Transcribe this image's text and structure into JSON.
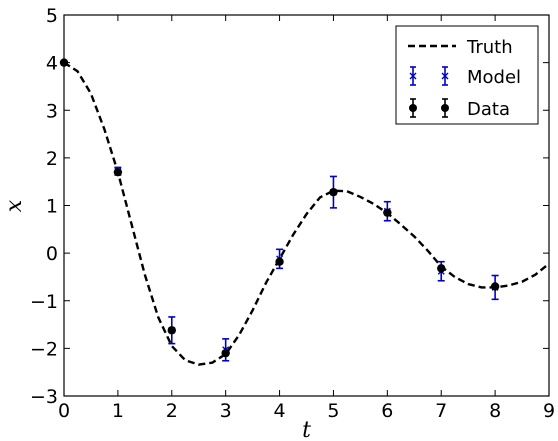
{
  "chart_data": {
    "type": "line",
    "title": "",
    "xlabel": "t",
    "ylabel": "x",
    "xlim": [
      0,
      9
    ],
    "ylim": [
      -3,
      5
    ],
    "xticks": [
      0,
      1,
      2,
      3,
      4,
      5,
      6,
      7,
      8,
      9
    ],
    "yticks": [
      -3,
      -2,
      -1,
      0,
      1,
      2,
      3,
      4,
      5
    ],
    "xtick_labels": [
      "0",
      "1",
      "2",
      "3",
      "4",
      "5",
      "6",
      "7",
      "8",
      "9"
    ],
    "ytick_labels": [
      "−3",
      "−2",
      "−1",
      "0",
      "1",
      "2",
      "3",
      "4",
      "5"
    ],
    "grid": false,
    "legend_position": "top-right",
    "series": [
      {
        "name": "Truth",
        "style": "dashed-line",
        "color": "#000000",
        "x": [
          0,
          0.25,
          0.5,
          0.75,
          1,
          1.25,
          1.5,
          1.75,
          2,
          2.25,
          2.5,
          2.75,
          3,
          3.25,
          3.5,
          3.75,
          4,
          4.25,
          4.5,
          4.75,
          5,
          5.25,
          5.5,
          5.75,
          6,
          6.25,
          6.5,
          6.75,
          7,
          7.25,
          7.5,
          7.75,
          8,
          8.25,
          8.5,
          8.75,
          9
        ],
        "y": [
          4.0,
          3.82,
          3.35,
          2.6,
          1.7,
          0.62,
          -0.45,
          -1.35,
          -1.95,
          -2.25,
          -2.34,
          -2.3,
          -2.12,
          -1.72,
          -1.2,
          -0.62,
          -0.12,
          0.38,
          0.82,
          1.17,
          1.31,
          1.3,
          1.18,
          1.03,
          0.84,
          0.6,
          0.35,
          0.05,
          -0.28,
          -0.5,
          -0.65,
          -0.72,
          -0.72,
          -0.68,
          -0.6,
          -0.45,
          -0.22
        ]
      },
      {
        "name": "Model",
        "style": "errorbar-x",
        "color": "#0000cc",
        "x": [
          1,
          2,
          3,
          4,
          5,
          6,
          7,
          8
        ],
        "y": [
          1.72,
          -1.62,
          -2.03,
          -0.12,
          1.28,
          0.88,
          -0.38,
          -0.72
        ],
        "yerr": [
          0.08,
          0.28,
          0.23,
          0.2,
          0.33,
          0.2,
          0.2,
          0.25
        ]
      },
      {
        "name": "Data",
        "style": "errorbar-dot",
        "color": "#000000",
        "x": [
          0,
          1,
          2,
          3,
          4,
          5,
          6,
          7,
          8
        ],
        "y": [
          4.0,
          1.7,
          -1.62,
          -2.1,
          -0.18,
          1.28,
          0.85,
          -0.32,
          -0.7
        ]
      }
    ]
  }
}
